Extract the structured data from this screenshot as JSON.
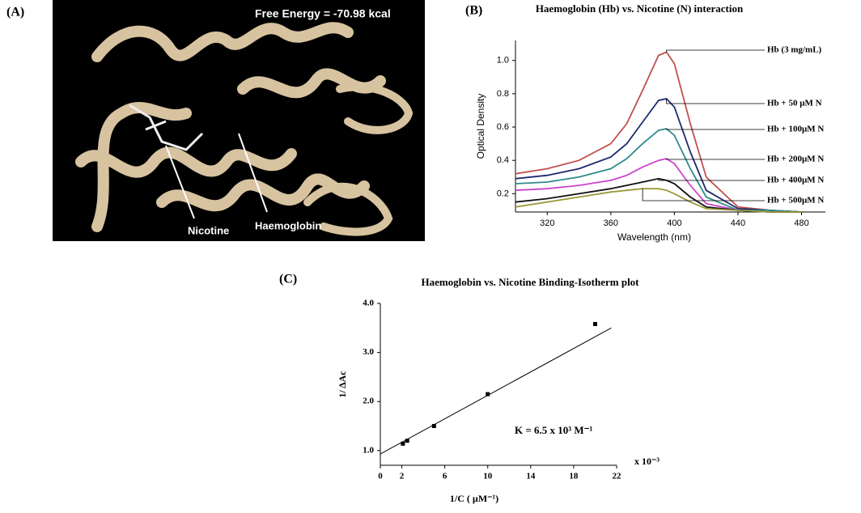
{
  "panel_a": {
    "label": "(A)",
    "annotation": "Free Energy = -70.98 kcal",
    "pointers": [
      "Nicotine",
      "Haemoglobin"
    ]
  },
  "chart_data": [
    {
      "type": "line",
      "label": "(B)",
      "title": "Haemoglobin (Hb) vs. Nicotine (N) interaction",
      "x_label": "Wavelength (nm)",
      "y_label": "Optical Density",
      "x": [
        300,
        320,
        340,
        360,
        370,
        380,
        390,
        395,
        400,
        410,
        420,
        440,
        460,
        480
      ],
      "xlim": [
        300,
        495
      ],
      "xticks": [
        320,
        360,
        400,
        440,
        480
      ],
      "ylim": [
        0.09,
        1.12
      ],
      "yticks": [
        0.2,
        0.4,
        0.6,
        0.8,
        {
          "value": 1,
          "label": "1.0"
        }
      ],
      "series": [
        {
          "name": "Hb  (3 mg/mL)",
          "color": "#c0504d",
          "values": [
            0.32,
            0.35,
            0.4,
            0.5,
            0.62,
            0.82,
            1.03,
            1.05,
            0.98,
            0.62,
            0.3,
            0.12,
            0.1,
            0.09
          ]
        },
        {
          "name": "Hb +  50 µM N",
          "color": "#1f2a6b",
          "values": [
            0.29,
            0.31,
            0.35,
            0.42,
            0.5,
            0.63,
            0.76,
            0.77,
            0.72,
            0.45,
            0.22,
            0.11,
            0.1,
            0.09
          ]
        },
        {
          "name": "Hb +  100µM N",
          "color": "#2e8b8b",
          "values": [
            0.26,
            0.27,
            0.3,
            0.35,
            0.41,
            0.5,
            0.58,
            0.59,
            0.55,
            0.35,
            0.18,
            0.1,
            0.1,
            0.09
          ]
        },
        {
          "name": "Hb +  200µM N",
          "color": "#cc44cc",
          "values": [
            0.22,
            0.23,
            0.25,
            0.28,
            0.31,
            0.36,
            0.4,
            0.41,
            0.38,
            0.25,
            0.14,
            0.1,
            0.09,
            0.09
          ]
        },
        {
          "name": "Hb +  400µM N",
          "color": "#111111",
          "values": [
            0.15,
            0.17,
            0.2,
            0.23,
            0.25,
            0.27,
            0.29,
            0.28,
            0.26,
            0.18,
            0.12,
            0.1,
            0.09,
            0.09
          ]
        },
        {
          "name": "Hb +  500µM N",
          "color": "#9a9a3a",
          "values": [
            0.12,
            0.15,
            0.18,
            0.21,
            0.22,
            0.23,
            0.23,
            0.22,
            0.2,
            0.15,
            0.11,
            0.1,
            0.09,
            0.09
          ]
        }
      ]
    },
    {
      "type": "scatter",
      "label": "(C)",
      "title": "Haemoglobin vs. Nicotine Binding-Isotherm plot",
      "x_label": "1/C ( µM⁻¹)",
      "y_label": "1/ ΔAc",
      "x_multiplier": "x 10⁻³",
      "annotation": "K  = 6.5 x 10³  M⁻¹",
      "x": [
        2.1,
        2.5,
        5,
        10,
        20
      ],
      "values": [
        1.14,
        1.2,
        1.5,
        2.15,
        3.58
      ],
      "fit": {
        "x": [
          0,
          21.5
        ],
        "values": [
          0.93,
          3.5
        ]
      },
      "xlim": [
        0,
        22
      ],
      "xticks": [
        0,
        2,
        6,
        10,
        14,
        18,
        22
      ],
      "ylim": [
        0.7,
        4.0
      ],
      "yticks": [
        {
          "value": 1,
          "label": "1.0"
        },
        {
          "value": 2,
          "label": "2.0"
        },
        {
          "value": 3,
          "label": "3.0"
        },
        {
          "value": 4,
          "label": "4.0"
        }
      ]
    }
  ]
}
